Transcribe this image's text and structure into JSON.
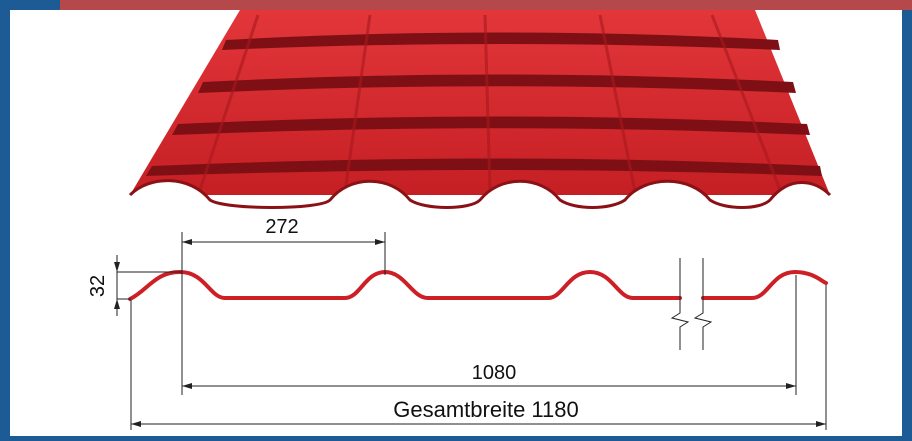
{
  "colors": {
    "border": "#1d5b96",
    "roof_red": "#d3262b",
    "roof_dark": "#7e1015",
    "profile_red": "#cc1f26",
    "dim_line": "#222222",
    "background": "#ffffff"
  },
  "dimensions": {
    "pitch": "272",
    "height": "32",
    "covering_width": "1080",
    "total_width": "Gesamtbreite 1180"
  }
}
